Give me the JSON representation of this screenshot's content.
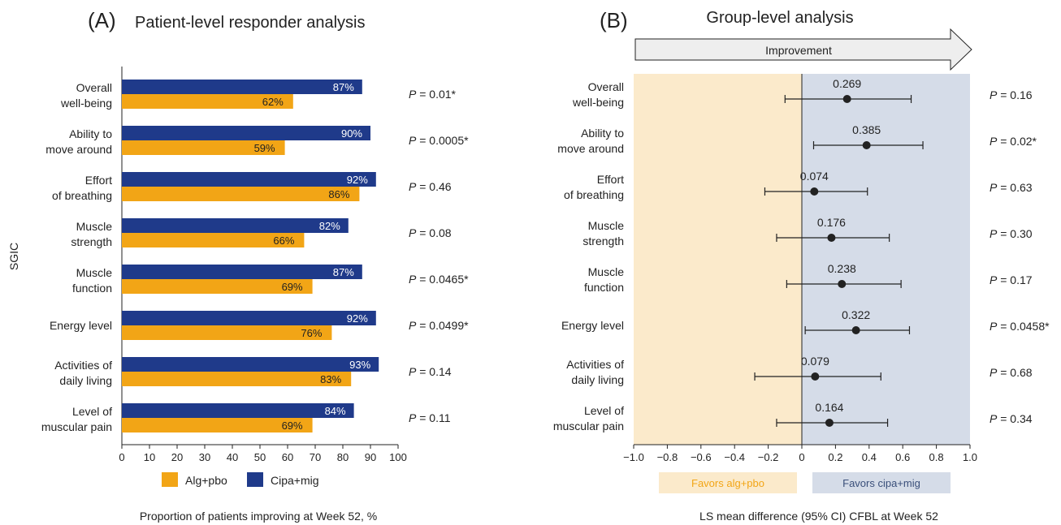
{
  "colors": {
    "alg": "#F2A516",
    "cipa": "#1F3A8A",
    "favors_alg_bg": "#FBEACB",
    "favors_cipa_bg": "#D5DCE8",
    "arrow_fill": "#EEEEEE",
    "text": "#222222"
  },
  "chart_data": [
    {
      "type": "bar",
      "panel_label": "(A)",
      "title": "Patient-level responder analysis",
      "ylabel": "SGIC",
      "xlabel": "Proportion of patients improving at Week 52, %",
      "xlim": [
        0,
        100
      ],
      "xticks": [
        "0",
        "10",
        "20",
        "30",
        "40",
        "50",
        "60",
        "70",
        "80",
        "90",
        "100"
      ],
      "categories": [
        [
          "Overall",
          "well-being"
        ],
        [
          "Ability to",
          "move around"
        ],
        [
          "Effort",
          "of breathing"
        ],
        [
          "Muscle",
          "strength"
        ],
        [
          "Muscle",
          "function"
        ],
        [
          "Energy level"
        ],
        [
          "Activities of",
          "daily living"
        ],
        [
          "Level of",
          "muscular pain"
        ]
      ],
      "series": [
        {
          "name": "Cipa+mig",
          "values": [
            87,
            90,
            92,
            82,
            87,
            92,
            93,
            84
          ],
          "labels": [
            "87%",
            "90%",
            "92%",
            "82%",
            "87%",
            "92%",
            "93%",
            "84%"
          ]
        },
        {
          "name": "Alg+pbo",
          "values": [
            62,
            59,
            86,
            66,
            69,
            76,
            83,
            69
          ],
          "labels": [
            "62%",
            "59%",
            "86%",
            "66%",
            "69%",
            "76%",
            "83%",
            "69%"
          ]
        }
      ],
      "legend": {
        "position": "bottom",
        "items": [
          "Alg+pbo",
          "Cipa+mig"
        ]
      },
      "p_prefix": "P",
      "p_values": [
        "= 0.01*",
        "= 0.0005*",
        "= 0.46",
        "= 0.08",
        "= 0.0465*",
        "= 0.0499*",
        "= 0.14",
        "= 0.11"
      ]
    },
    {
      "type": "scatter",
      "subtype": "forest",
      "panel_label": "(B)",
      "title": "Group-level analysis",
      "arrow_label": "Improvement",
      "xlabel": "LS mean difference (95% CI) CFBL at Week 52",
      "xlim": [
        -1.0,
        1.0
      ],
      "xticks": [
        "−1.0",
        "−0.8",
        "−0.6",
        "−0.4",
        "−0.2",
        "0",
        "0.2",
        "0.4",
        "0.6",
        "0.8",
        "1.0"
      ],
      "categories": [
        [
          "Overall",
          "well-being"
        ],
        [
          "Ability to",
          "move around"
        ],
        [
          "Effort",
          "of breathing"
        ],
        [
          "Muscle",
          "strength"
        ],
        [
          "Muscle",
          "function"
        ],
        [
          "Energy level"
        ],
        [
          "Activities of",
          "daily living"
        ],
        [
          "Level of",
          "muscular pain"
        ]
      ],
      "estimates": [
        0.269,
        0.385,
        0.074,
        0.176,
        0.238,
        0.322,
        0.079,
        0.164
      ],
      "estimate_labels": [
        "0.269",
        "0.385",
        "0.074",
        "0.176",
        "0.238",
        "0.322",
        "0.079",
        "0.164"
      ],
      "ci_low": [
        -0.1,
        0.07,
        -0.22,
        -0.15,
        -0.09,
        0.02,
        -0.28,
        -0.15
      ],
      "ci_high": [
        0.65,
        0.72,
        0.39,
        0.52,
        0.59,
        0.64,
        0.47,
        0.51
      ],
      "favors": {
        "left": "Favors alg+pbo",
        "right": "Favors cipa+mig"
      },
      "p_prefix": "P",
      "p_values": [
        "= 0.16",
        "= 0.02*",
        "= 0.63",
        "= 0.30",
        "= 0.17",
        "= 0.0458*",
        "= 0.68",
        "= 0.34"
      ]
    }
  ]
}
